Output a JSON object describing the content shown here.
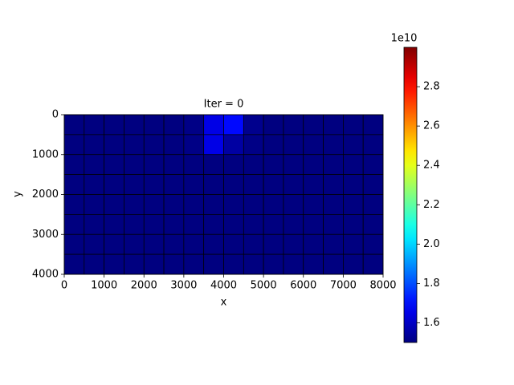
{
  "chart_data": {
    "type": "heatmap",
    "title": "Iter = 0",
    "x_label": "x",
    "y_label": "y",
    "x_edges": [
      0,
      500,
      1000,
      1500,
      2000,
      2500,
      3000,
      3500,
      4000,
      4500,
      5000,
      5500,
      6000,
      6500,
      7000,
      7500,
      8000
    ],
    "y_edges": [
      0,
      500,
      1000,
      1500,
      2000,
      2500,
      3000,
      3500,
      4000
    ],
    "values": [
      [
        15000000000,
        15000000000,
        15000000000,
        15000000000,
        15000000000,
        15000000000,
        15100000000,
        16500000000,
        17000000000,
        15200000000,
        15000000000,
        15000000000,
        15000000000,
        15000000000,
        15000000000,
        15000000000
      ],
      [
        15000000000,
        15000000000,
        15000000000,
        15000000000,
        15000000000,
        15000000000,
        15100000000,
        16500000000,
        15500000000,
        15100000000,
        15000000000,
        15000000000,
        15000000000,
        15000000000,
        15000000000,
        15000000000
      ],
      [
        15000000000,
        15000000000,
        15000000000,
        15000000000,
        15000000000,
        15000000000,
        15000000000,
        15000000000,
        15000000000,
        15000000000,
        15000000000,
        15000000000,
        15000000000,
        15000000000,
        15000000000,
        15000000000
      ],
      [
        15000000000,
        15000000000,
        15000000000,
        15000000000,
        15000000000,
        15000000000,
        15000000000,
        15000000000,
        15000000000,
        15000000000,
        15000000000,
        15000000000,
        15000000000,
        15000000000,
        15000000000,
        15000000000
      ],
      [
        15000000000,
        15000000000,
        15000000000,
        15000000000,
        15000000000,
        15000000000,
        15000000000,
        15000000000,
        15000000000,
        15000000000,
        15000000000,
        15000000000,
        15000000000,
        15000000000,
        15000000000,
        15000000000
      ],
      [
        15000000000,
        15000000000,
        15000000000,
        15000000000,
        15000000000,
        15000000000,
        15000000000,
        15000000000,
        15000000000,
        15000000000,
        15000000000,
        15000000000,
        15000000000,
        15000000000,
        15000000000,
        15000000000
      ],
      [
        15000000000,
        15000000000,
        15000000000,
        15000000000,
        15000000000,
        15000000000,
        15000000000,
        15000000000,
        15000000000,
        15000000000,
        15000000000,
        15000000000,
        15000000000,
        15000000000,
        15000000000,
        15000000000
      ],
      [
        15000000000,
        15000000000,
        15000000000,
        15000000000,
        15000000000,
        15000000000,
        15000000000,
        15000000000,
        15000000000,
        15000000000,
        15000000000,
        15000000000,
        15000000000,
        15000000000,
        15000000000,
        15000000000
      ]
    ],
    "colormap": "jet",
    "xlim": [
      0,
      8000
    ],
    "xticks": [
      0,
      1000,
      2000,
      3000,
      4000,
      5000,
      6000,
      7000,
      8000
    ],
    "ylim": [
      0,
      4000
    ],
    "yticks": [
      0,
      1000,
      2000,
      3000,
      4000
    ],
    "y_inverted": true,
    "clim": [
      15000000000,
      30000000000
    ],
    "cticks": [
      {
        "value": 16000000000,
        "label": "1.6"
      },
      {
        "value": 18000000000,
        "label": "1.8"
      },
      {
        "value": 20000000000,
        "label": "2.0"
      },
      {
        "value": 22000000000,
        "label": "2.2"
      },
      {
        "value": 24000000000,
        "label": "2.4"
      },
      {
        "value": 26000000000,
        "label": "2.6"
      },
      {
        "value": 28000000000,
        "label": "2.8"
      }
    ],
    "colorbar_offset_label": "1e10"
  }
}
